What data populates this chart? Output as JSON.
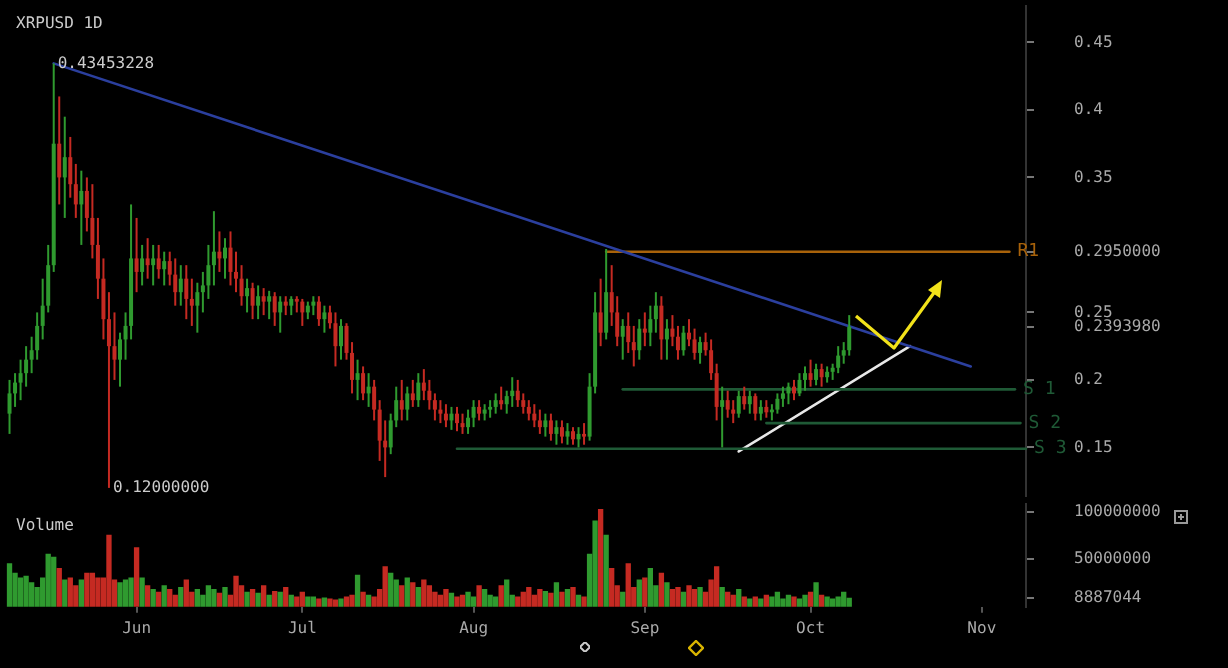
{
  "chart_data": [
    {
      "type": "candlestick",
      "title": "XRPUSD 1D",
      "tick_labels": "y",
      "xlim": [
        "--05-08",
        "--11-09"
      ],
      "ylim": [
        0.114,
        0.477
      ],
      "yticks": [
        0.15,
        0.2,
        {
          "value": 0.239398,
          "label": "0.2393980"
        },
        0.25,
        {
          "value": 0.295,
          "label": "0.2950000"
        },
        0.35,
        0.4,
        0.45
      ],
      "x": [
        "--05-09",
        "--05-10",
        "--05-11",
        "--05-12",
        "--05-13",
        "--05-14",
        "--05-15",
        "--05-16",
        "--05-17",
        "--05-18",
        "--05-19",
        "--05-20",
        "--05-21",
        "--05-22",
        "--05-23",
        "--05-24",
        "--05-25",
        "--05-26",
        "--05-27",
        "--05-28",
        "--05-29",
        "--05-30",
        "--05-31",
        "--06-01",
        "--06-02",
        "--06-03",
        "--06-04",
        "--06-05",
        "--06-06",
        "--06-07",
        "--06-08",
        "--06-09",
        "--06-10",
        "--06-11",
        "--06-12",
        "--06-13",
        "--06-14",
        "--06-15",
        "--06-16",
        "--06-17",
        "--06-18",
        "--06-19",
        "--06-20",
        "--06-21",
        "--06-22",
        "--06-23",
        "--06-24",
        "--06-25",
        "--06-26",
        "--06-27",
        "--06-28",
        "--06-29",
        "--06-30",
        "--07-01",
        "--07-02",
        "--07-03",
        "--07-04",
        "--07-05",
        "--07-06",
        "--07-07",
        "--07-08",
        "--07-09",
        "--07-10",
        "--07-11",
        "--07-12",
        "--07-13",
        "--07-14",
        "--07-15",
        "--07-16",
        "--07-17",
        "--07-18",
        "--07-19",
        "--07-20",
        "--07-21",
        "--07-22",
        "--07-23",
        "--07-24",
        "--07-25",
        "--07-26",
        "--07-27",
        "--07-28",
        "--07-29",
        "--07-30",
        "--07-31",
        "--08-01",
        "--08-02",
        "--08-03",
        "--08-04",
        "--08-05",
        "--08-06",
        "--08-07",
        "--08-08",
        "--08-09",
        "--08-10",
        "--08-11",
        "--08-12",
        "--08-13",
        "--08-14",
        "--08-15",
        "--08-16",
        "--08-17",
        "--08-18",
        "--08-19",
        "--08-20",
        "--08-21",
        "--08-22",
        "--08-23",
        "--08-24",
        "--08-25",
        "--08-26",
        "--08-27",
        "--08-28",
        "--08-29",
        "--08-30",
        "--08-31",
        "--09-01",
        "--09-02",
        "--09-03",
        "--09-04",
        "--09-05",
        "--09-06",
        "--09-07",
        "--09-08",
        "--09-09",
        "--09-10",
        "--09-11",
        "--09-12",
        "--09-13",
        "--09-14",
        "--09-15",
        "--09-16",
        "--09-17",
        "--09-18",
        "--09-19",
        "--09-20",
        "--09-21",
        "--09-22",
        "--09-23",
        "--09-24",
        "--09-25",
        "--09-26",
        "--09-27",
        "--09-28",
        "--09-29",
        "--09-30",
        "--10-01",
        "--10-02",
        "--10-03",
        "--10-04",
        "--10-05",
        "--10-06",
        "--10-07",
        "--10-08"
      ],
      "ohlc": [
        [
          0.175,
          0.2,
          0.16,
          0.19
        ],
        [
          0.19,
          0.205,
          0.18,
          0.198
        ],
        [
          0.198,
          0.215,
          0.185,
          0.205
        ],
        [
          0.205,
          0.225,
          0.195,
          0.215
        ],
        [
          0.215,
          0.232,
          0.205,
          0.222
        ],
        [
          0.222,
          0.25,
          0.215,
          0.24
        ],
        [
          0.24,
          0.275,
          0.23,
          0.255
        ],
        [
          0.255,
          0.3,
          0.25,
          0.285
        ],
        [
          0.285,
          0.4345,
          0.28,
          0.375
        ],
        [
          0.375,
          0.41,
          0.33,
          0.35
        ],
        [
          0.35,
          0.395,
          0.32,
          0.365
        ],
        [
          0.365,
          0.38,
          0.335,
          0.345
        ],
        [
          0.345,
          0.36,
          0.32,
          0.33
        ],
        [
          0.33,
          0.355,
          0.3,
          0.34
        ],
        [
          0.34,
          0.35,
          0.31,
          0.32
        ],
        [
          0.32,
          0.345,
          0.29,
          0.3
        ],
        [
          0.3,
          0.32,
          0.26,
          0.275
        ],
        [
          0.275,
          0.29,
          0.23,
          0.245
        ],
        [
          0.245,
          0.265,
          0.12,
          0.225
        ],
        [
          0.225,
          0.25,
          0.2,
          0.215
        ],
        [
          0.215,
          0.235,
          0.195,
          0.23
        ],
        [
          0.23,
          0.25,
          0.215,
          0.24
        ],
        [
          0.24,
          0.33,
          0.23,
          0.29
        ],
        [
          0.29,
          0.32,
          0.265,
          0.28
        ],
        [
          0.28,
          0.3,
          0.27,
          0.29
        ],
        [
          0.29,
          0.305,
          0.275,
          0.285
        ],
        [
          0.285,
          0.3,
          0.27,
          0.29
        ],
        [
          0.29,
          0.3,
          0.275,
          0.282
        ],
        [
          0.282,
          0.295,
          0.27,
          0.288
        ],
        [
          0.288,
          0.295,
          0.27,
          0.278
        ],
        [
          0.278,
          0.29,
          0.255,
          0.265
        ],
        [
          0.265,
          0.285,
          0.255,
          0.275
        ],
        [
          0.275,
          0.285,
          0.245,
          0.26
        ],
        [
          0.26,
          0.275,
          0.24,
          0.255
        ],
        [
          0.255,
          0.272,
          0.235,
          0.265
        ],
        [
          0.265,
          0.28,
          0.25,
          0.27
        ],
        [
          0.27,
          0.3,
          0.26,
          0.285
        ],
        [
          0.285,
          0.325,
          0.27,
          0.295
        ],
        [
          0.295,
          0.31,
          0.28,
          0.29
        ],
        [
          0.29,
          0.305,
          0.275,
          0.298
        ],
        [
          0.298,
          0.31,
          0.27,
          0.28
        ],
        [
          0.28,
          0.295,
          0.265,
          0.275
        ],
        [
          0.275,
          0.285,
          0.255,
          0.262
        ],
        [
          0.262,
          0.275,
          0.25,
          0.268
        ],
        [
          0.268,
          0.272,
          0.245,
          0.255
        ],
        [
          0.255,
          0.27,
          0.245,
          0.262
        ],
        [
          0.262,
          0.268,
          0.248,
          0.258
        ],
        [
          0.258,
          0.266,
          0.245,
          0.262
        ],
        [
          0.262,
          0.265,
          0.24,
          0.25
        ],
        [
          0.25,
          0.262,
          0.235,
          0.258
        ],
        [
          0.258,
          0.262,
          0.248,
          0.255
        ],
        [
          0.255,
          0.262,
          0.248,
          0.26
        ],
        [
          0.26,
          0.262,
          0.25,
          0.258
        ],
        [
          0.258,
          0.26,
          0.24,
          0.25
        ],
        [
          0.25,
          0.258,
          0.245,
          0.255
        ],
        [
          0.255,
          0.262,
          0.248,
          0.258
        ],
        [
          0.258,
          0.262,
          0.24,
          0.245
        ],
        [
          0.245,
          0.255,
          0.235,
          0.25
        ],
        [
          0.25,
          0.255,
          0.238,
          0.242
        ],
        [
          0.242,
          0.25,
          0.21,
          0.225
        ],
        [
          0.225,
          0.245,
          0.215,
          0.24
        ],
        [
          0.24,
          0.242,
          0.215,
          0.22
        ],
        [
          0.22,
          0.228,
          0.19,
          0.2
        ],
        [
          0.2,
          0.215,
          0.185,
          0.205
        ],
        [
          0.205,
          0.21,
          0.185,
          0.19
        ],
        [
          0.19,
          0.205,
          0.18,
          0.195
        ],
        [
          0.195,
          0.2,
          0.17,
          0.178
        ],
        [
          0.178,
          0.185,
          0.14,
          0.155
        ],
        [
          0.155,
          0.17,
          0.128,
          0.15
        ],
        [
          0.15,
          0.175,
          0.145,
          0.17
        ],
        [
          0.17,
          0.195,
          0.165,
          0.185
        ],
        [
          0.185,
          0.2,
          0.17,
          0.178
        ],
        [
          0.178,
          0.195,
          0.17,
          0.19
        ],
        [
          0.19,
          0.2,
          0.18,
          0.185
        ],
        [
          0.185,
          0.205,
          0.18,
          0.198
        ],
        [
          0.198,
          0.208,
          0.185,
          0.192
        ],
        [
          0.192,
          0.2,
          0.178,
          0.185
        ],
        [
          0.185,
          0.19,
          0.17,
          0.178
        ],
        [
          0.178,
          0.185,
          0.168,
          0.175
        ],
        [
          0.175,
          0.182,
          0.165,
          0.17
        ],
        [
          0.17,
          0.18,
          0.163,
          0.175
        ],
        [
          0.175,
          0.18,
          0.162,
          0.168
        ],
        [
          0.168,
          0.175,
          0.16,
          0.165
        ],
        [
          0.165,
          0.178,
          0.16,
          0.172
        ],
        [
          0.172,
          0.185,
          0.165,
          0.18
        ],
        [
          0.18,
          0.185,
          0.17,
          0.175
        ],
        [
          0.175,
          0.182,
          0.17,
          0.178
        ],
        [
          0.178,
          0.185,
          0.172,
          0.18
        ],
        [
          0.18,
          0.19,
          0.175,
          0.185
        ],
        [
          0.185,
          0.195,
          0.178,
          0.182
        ],
        [
          0.182,
          0.192,
          0.175,
          0.188
        ],
        [
          0.188,
          0.202,
          0.18,
          0.192
        ],
        [
          0.192,
          0.2,
          0.18,
          0.185
        ],
        [
          0.185,
          0.19,
          0.175,
          0.18
        ],
        [
          0.18,
          0.185,
          0.17,
          0.175
        ],
        [
          0.175,
          0.182,
          0.165,
          0.17
        ],
        [
          0.17,
          0.178,
          0.16,
          0.165
        ],
        [
          0.165,
          0.175,
          0.158,
          0.17
        ],
        [
          0.17,
          0.175,
          0.155,
          0.16
        ],
        [
          0.16,
          0.17,
          0.152,
          0.165
        ],
        [
          0.165,
          0.17,
          0.153,
          0.158
        ],
        [
          0.158,
          0.168,
          0.152,
          0.162
        ],
        [
          0.162,
          0.165,
          0.152,
          0.156
        ],
        [
          0.156,
          0.165,
          0.15,
          0.16
        ],
        [
          0.16,
          0.168,
          0.152,
          0.158
        ],
        [
          0.158,
          0.205,
          0.155,
          0.195
        ],
        [
          0.195,
          0.265,
          0.19,
          0.25
        ],
        [
          0.25,
          0.275,
          0.225,
          0.235
        ],
        [
          0.235,
          0.297,
          0.23,
          0.265
        ],
        [
          0.265,
          0.285,
          0.24,
          0.25
        ],
        [
          0.25,
          0.262,
          0.225,
          0.232
        ],
        [
          0.232,
          0.245,
          0.215,
          0.24
        ],
        [
          0.24,
          0.25,
          0.22,
          0.228
        ],
        [
          0.228,
          0.24,
          0.21,
          0.222
        ],
        [
          0.222,
          0.245,
          0.215,
          0.238
        ],
        [
          0.238,
          0.25,
          0.225,
          0.235
        ],
        [
          0.235,
          0.255,
          0.225,
          0.245
        ],
        [
          0.245,
          0.265,
          0.235,
          0.255
        ],
        [
          0.255,
          0.262,
          0.215,
          0.23
        ],
        [
          0.23,
          0.245,
          0.215,
          0.238
        ],
        [
          0.238,
          0.248,
          0.225,
          0.232
        ],
        [
          0.232,
          0.24,
          0.215,
          0.222
        ],
        [
          0.222,
          0.24,
          0.218,
          0.235
        ],
        [
          0.235,
          0.245,
          0.225,
          0.23
        ],
        [
          0.23,
          0.238,
          0.215,
          0.22
        ],
        [
          0.22,
          0.232,
          0.212,
          0.228
        ],
        [
          0.228,
          0.235,
          0.218,
          0.222
        ],
        [
          0.222,
          0.23,
          0.2,
          0.205
        ],
        [
          0.205,
          0.212,
          0.17,
          0.18
        ],
        [
          0.18,
          0.195,
          0.15,
          0.185
        ],
        [
          0.185,
          0.192,
          0.172,
          0.178
        ],
        [
          0.178,
          0.185,
          0.168,
          0.175
        ],
        [
          0.175,
          0.192,
          0.172,
          0.188
        ],
        [
          0.188,
          0.195,
          0.178,
          0.182
        ],
        [
          0.182,
          0.192,
          0.175,
          0.188
        ],
        [
          0.188,
          0.19,
          0.17,
          0.175
        ],
        [
          0.175,
          0.185,
          0.17,
          0.18
        ],
        [
          0.18,
          0.185,
          0.172,
          0.176
        ],
        [
          0.176,
          0.182,
          0.17,
          0.178
        ],
        [
          0.178,
          0.19,
          0.175,
          0.186
        ],
        [
          0.186,
          0.195,
          0.18,
          0.19
        ],
        [
          0.19,
          0.198,
          0.182,
          0.195
        ],
        [
          0.195,
          0.2,
          0.185,
          0.19
        ],
        [
          0.19,
          0.205,
          0.188,
          0.2
        ],
        [
          0.2,
          0.21,
          0.192,
          0.205
        ],
        [
          0.205,
          0.215,
          0.195,
          0.2
        ],
        [
          0.2,
          0.212,
          0.196,
          0.208
        ],
        [
          0.208,
          0.212,
          0.195,
          0.202
        ],
        [
          0.202,
          0.21,
          0.198,
          0.206
        ],
        [
          0.206,
          0.212,
          0.2,
          0.209
        ],
        [
          0.209,
          0.225,
          0.205,
          0.218
        ],
        [
          0.218,
          0.228,
          0.212,
          0.222
        ],
        [
          0.222,
          0.248,
          0.218,
          0.2394
        ]
      ],
      "series": [
        {
          "type": "line",
          "color": "#2b3f9e",
          "x": [
            "--05-17",
            "--10-30"
          ],
          "values": [
            0.4345,
            0.21
          ]
        },
        {
          "type": "line",
          "name": "R1",
          "color": "#a8620a",
          "x": [
            "--08-25",
            "--11-06"
          ],
          "values": [
            0.295,
            0.295
          ]
        },
        {
          "type": "line",
          "name": "S 1",
          "color": "#1f5a36",
          "x": [
            "--08-28",
            "--11-07"
          ],
          "values": [
            0.193,
            0.193
          ]
        },
        {
          "type": "line",
          "name": "S 2",
          "color": "#1f5a36",
          "x": [
            "--09-23",
            "--11-08"
          ],
          "values": [
            0.168,
            0.168
          ]
        },
        {
          "type": "line",
          "name": "S 3",
          "color": "#1f5a36",
          "x": [
            "--07-29",
            "--11-09"
          ],
          "values": [
            0.149,
            0.149
          ]
        },
        {
          "type": "line",
          "color": "#e8e8e8",
          "x": [
            "--09-18",
            "--10-19"
          ],
          "values": [
            0.147,
            0.225
          ]
        }
      ],
      "annotations": [
        {
          "text": "0.43453228",
          "x": "--05-17",
          "y": 0.4345
        },
        {
          "text": "0.12000000",
          "x": "--05-27",
          "y": 0.12
        }
      ]
    },
    {
      "type": "bar",
      "title": "Volume",
      "xlim": [
        "--05-08",
        "--11-09"
      ],
      "ylim": [
        0,
        108000000
      ],
      "xticks": [
        {
          "value": "--06-01",
          "label": "Jun"
        },
        {
          "value": "--07-01",
          "label": "Jul"
        },
        {
          "value": "--08-01",
          "label": "Aug"
        },
        {
          "value": "--09-01",
          "label": "Sep"
        },
        {
          "value": "--10-01",
          "label": "Oct"
        },
        {
          "value": "--11-01",
          "label": "Nov"
        }
      ],
      "yticks": [
        8887044,
        50000000,
        100000000
      ],
      "x": [
        "--05-09",
        "--05-10",
        "--05-11",
        "--05-12",
        "--05-13",
        "--05-14",
        "--05-15",
        "--05-16",
        "--05-17",
        "--05-18",
        "--05-19",
        "--05-20",
        "--05-21",
        "--05-22",
        "--05-23",
        "--05-24",
        "--05-25",
        "--05-26",
        "--05-27",
        "--05-28",
        "--05-29",
        "--05-30",
        "--05-31",
        "--06-01",
        "--06-02",
        "--06-03",
        "--06-04",
        "--06-05",
        "--06-06",
        "--06-07",
        "--06-08",
        "--06-09",
        "--06-10",
        "--06-11",
        "--06-12",
        "--06-13",
        "--06-14",
        "--06-15",
        "--06-16",
        "--06-17",
        "--06-18",
        "--06-19",
        "--06-20",
        "--06-21",
        "--06-22",
        "--06-23",
        "--06-24",
        "--06-25",
        "--06-26",
        "--06-27",
        "--06-28",
        "--06-29",
        "--06-30",
        "--07-01",
        "--07-02",
        "--07-03",
        "--07-04",
        "--07-05",
        "--07-06",
        "--07-07",
        "--07-08",
        "--07-09",
        "--07-10",
        "--07-11",
        "--07-12",
        "--07-13",
        "--07-14",
        "--07-15",
        "--07-16",
        "--07-17",
        "--07-18",
        "--07-19",
        "--07-20",
        "--07-21",
        "--07-22",
        "--07-23",
        "--07-24",
        "--07-25",
        "--07-26",
        "--07-27",
        "--07-28",
        "--07-29",
        "--07-30",
        "--07-31",
        "--08-01",
        "--08-02",
        "--08-03",
        "--08-04",
        "--08-05",
        "--08-06",
        "--08-07",
        "--08-08",
        "--08-09",
        "--08-10",
        "--08-11",
        "--08-12",
        "--08-13",
        "--08-14",
        "--08-15",
        "--08-16",
        "--08-17",
        "--08-18",
        "--08-19",
        "--08-20",
        "--08-21",
        "--08-22",
        "--08-23",
        "--08-24",
        "--08-25",
        "--08-26",
        "--08-27",
        "--08-28",
        "--08-29",
        "--08-30",
        "--08-31",
        "--09-01",
        "--09-02",
        "--09-03",
        "--09-04",
        "--09-05",
        "--09-06",
        "--09-07",
        "--09-08",
        "--09-09",
        "--09-10",
        "--09-11",
        "--09-12",
        "--09-13",
        "--09-14",
        "--09-15",
        "--09-16",
        "--09-17",
        "--09-18",
        "--09-19",
        "--09-20",
        "--09-21",
        "--09-22",
        "--09-23",
        "--09-24",
        "--09-25",
        "--09-26",
        "--09-27",
        "--09-28",
        "--09-29",
        "--09-30",
        "--10-01",
        "--10-02",
        "--10-03",
        "--10-04",
        "--10-05",
        "--10-06",
        "--10-07",
        "--10-08"
      ],
      "values": [
        45000000,
        35000000,
        30000000,
        32000000,
        25000000,
        20000000,
        30000000,
        55000000,
        52000000,
        40000000,
        28000000,
        30000000,
        22000000,
        28000000,
        35000000,
        35000000,
        30000000,
        30000000,
        75000000,
        28000000,
        25000000,
        28000000,
        30000000,
        62000000,
        30000000,
        22000000,
        18000000,
        15000000,
        22000000,
        18000000,
        12000000,
        20000000,
        28000000,
        15000000,
        18000000,
        12000000,
        22000000,
        18000000,
        14000000,
        20000000,
        12000000,
        32000000,
        22000000,
        15000000,
        18000000,
        14000000,
        22000000,
        12000000,
        16000000,
        15000000,
        20000000,
        12000000,
        10000000,
        15000000,
        10000000,
        10000000,
        8000000,
        9000000,
        8000000,
        7000000,
        8000000,
        10000000,
        12000000,
        33000000,
        15000000,
        12000000,
        10000000,
        18000000,
        42000000,
        35000000,
        28000000,
        22000000,
        30000000,
        25000000,
        20000000,
        28000000,
        22000000,
        15000000,
        12000000,
        18000000,
        14000000,
        10000000,
        12000000,
        15000000,
        10000000,
        22000000,
        18000000,
        12000000,
        10000000,
        22000000,
        28000000,
        12000000,
        10000000,
        15000000,
        20000000,
        12000000,
        18000000,
        16000000,
        14000000,
        25000000,
        15000000,
        18000000,
        20000000,
        12000000,
        10000000,
        55000000,
        90000000,
        102000000,
        75000000,
        40000000,
        22000000,
        15000000,
        45000000,
        20000000,
        28000000,
        30000000,
        40000000,
        22000000,
        35000000,
        25000000,
        18000000,
        20000000,
        15000000,
        22000000,
        18000000,
        20000000,
        15000000,
        28000000,
        42000000,
        20000000,
        15000000,
        12000000,
        18000000,
        10000000,
        8000000,
        10000000,
        8000000,
        12000000,
        10000000,
        15000000,
        8000000,
        12000000,
        10000000,
        8000000,
        12000000,
        15000000,
        25000000,
        12000000,
        10000000,
        8000000,
        10000000,
        15000000,
        8887044
      ],
      "colors": [
        "#2f9a2f",
        "#2f9a2f",
        "#2f9a2f",
        "#2f9a2f",
        "#2f9a2f",
        "#2f9a2f",
        "#2f9a2f",
        "#2f9a2f",
        "#2f9a2f",
        "#c52a22",
        "#2f9a2f",
        "#c52a22",
        "#c52a22",
        "#2f9a2f",
        "#c52a22",
        "#c52a22",
        "#c52a22",
        "#c52a22",
        "#c52a22",
        "#c52a22",
        "#2f9a2f",
        "#2f9a2f",
        "#2f9a2f",
        "#c52a22",
        "#2f9a2f",
        "#c52a22",
        "#2f9a2f",
        "#c52a22",
        "#2f9a2f",
        "#c52a22",
        "#c52a22",
        "#2f9a2f",
        "#c52a22",
        "#c52a22",
        "#2f9a2f",
        "#2f9a2f",
        "#2f9a2f",
        "#2f9a2f",
        "#c52a22",
        "#2f9a2f",
        "#c52a22",
        "#c52a22",
        "#c52a22",
        "#2f9a2f",
        "#c52a22",
        "#2f9a2f",
        "#c52a22",
        "#2f9a2f",
        "#c52a22",
        "#2f9a2f",
        "#c52a22",
        "#2f9a2f",
        "#c52a22",
        "#c52a22",
        "#2f9a2f",
        "#2f9a2f",
        "#c52a22",
        "#2f9a2f",
        "#c52a22",
        "#c52a22",
        "#2f9a2f",
        "#c52a22",
        "#c52a22",
        "#2f9a2f",
        "#c52a22",
        "#2f9a2f",
        "#c52a22",
        "#c52a22",
        "#c52a22",
        "#2f9a2f",
        "#2f9a2f",
        "#c52a22",
        "#2f9a2f",
        "#c52a22",
        "#2f9a2f",
        "#c52a22",
        "#c52a22",
        "#c52a22",
        "#c52a22",
        "#c52a22",
        "#2f9a2f",
        "#c52a22",
        "#c52a22",
        "#2f9a2f",
        "#2f9a2f",
        "#c52a22",
        "#2f9a2f",
        "#2f9a2f",
        "#2f9a2f",
        "#c52a22",
        "#2f9a2f",
        "#2f9a2f",
        "#c52a22",
        "#c52a22",
        "#c52a22",
        "#c52a22",
        "#c52a22",
        "#2f9a2f",
        "#c52a22",
        "#2f9a2f",
        "#c52a22",
        "#2f9a2f",
        "#c52a22",
        "#2f9a2f",
        "#c52a22",
        "#2f9a2f",
        "#2f9a2f",
        "#c52a22",
        "#2f9a2f",
        "#c52a22",
        "#c52a22",
        "#2f9a2f",
        "#c52a22",
        "#c52a22",
        "#2f9a2f",
        "#c52a22",
        "#2f9a2f",
        "#2f9a2f",
        "#c52a22",
        "#2f9a2f",
        "#c52a22",
        "#c52a22",
        "#2f9a2f",
        "#c52a22",
        "#c52a22",
        "#2f9a2f",
        "#c52a22",
        "#c52a22",
        "#c52a22",
        "#2f9a2f",
        "#c52a22",
        "#c52a22",
        "#2f9a2f",
        "#c52a22",
        "#2f9a2f",
        "#c52a22",
        "#2f9a2f",
        "#c52a22",
        "#2f9a2f",
        "#2f9a2f",
        "#2f9a2f",
        "#2f9a2f",
        "#c52a22",
        "#2f9a2f",
        "#2f9a2f",
        "#c52a22",
        "#2f9a2f",
        "#c52a22",
        "#2f9a2f",
        "#2f9a2f",
        "#2f9a2f",
        "#2f9a2f",
        "#2f9a2f"
      ]
    }
  ]
}
